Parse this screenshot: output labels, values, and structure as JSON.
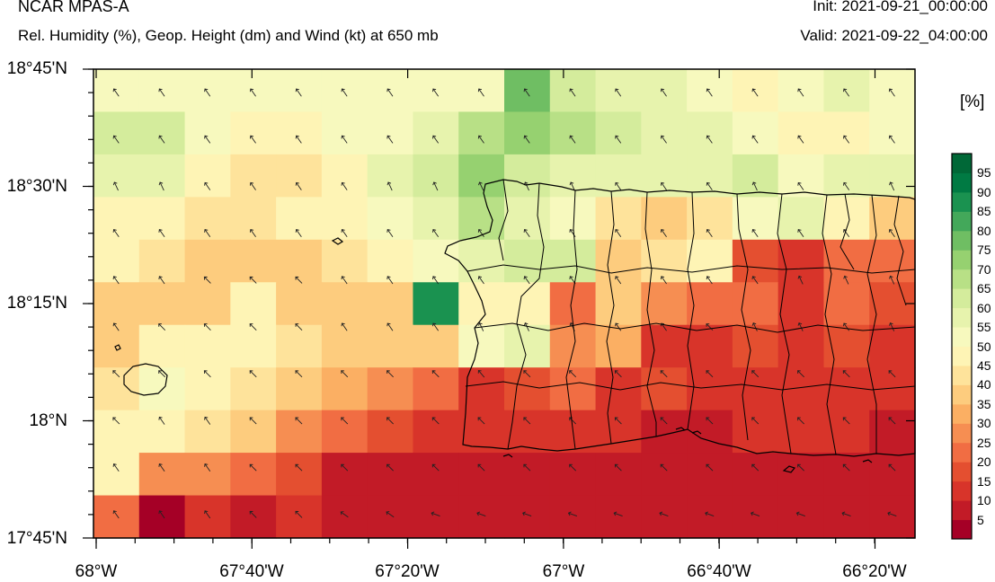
{
  "header": {
    "title": "NCAR MPAS-A",
    "subtitle": "Rel. Humidity (%), Geop. Height (dm) and Wind (kt) at 650 mb",
    "init": "Init: 2021-09-21_00:00:00",
    "valid": "Valid: 2021-09-22_04:00:00"
  },
  "axes": {
    "y_labels": [
      "18°45'N",
      "18°30'N",
      "18°15'N",
      "18°N",
      "17°45'N"
    ],
    "x_labels": [
      "68°W",
      "67°40'W",
      "67°20'W",
      "67°W",
      "66°40'W",
      "66°20'W"
    ]
  },
  "colorbar": {
    "unit": "[%]",
    "labels": [
      "95",
      "90",
      "85",
      "80",
      "75",
      "70",
      "65",
      "60",
      "55",
      "50",
      "45",
      "40",
      "35",
      "30",
      "25",
      "20",
      "15",
      "10",
      "5"
    ],
    "colors": [
      "#a50026",
      "#c21b27",
      "#d8342a",
      "#e44f30",
      "#f16d43",
      "#f68e52",
      "#fbaf63",
      "#fdcc7e",
      "#fee39b",
      "#fef4b5",
      "#f7f9be",
      "#e7f3ad",
      "#d4ec9c",
      "#b8e086",
      "#96d170",
      "#6fbe63",
      "#43a85a",
      "#1a9250",
      "#007a43",
      "#006837"
    ]
  },
  "map": {
    "lon_range": [
      -68.0,
      -66.25
    ],
    "lat_range": [
      17.75,
      18.75
    ],
    "grid_rows_north_to_south": [
      "EEEEEEEEEEEEEEEEEE",
      "EEEEEEEEEEEEEEEEEE",
      "DDEEEEDDDDDEEEDEED",
      "EEEEEEEEEEEEEEEEEE",
      "EEFFFEEEECEEEEEDDD",
      "EFFFFEEEDDDEEFDDED",
      "FFFFFFFFKFFFFFFFFF",
      "FEEFFFFFFFFFFFFFFF",
      "EEEFFFFFFFFFFFFFFF",
      "EEEFFGGHHHHHHHHHHH"
    ],
    "rh_grid": [
      [
        50,
        50,
        50,
        50,
        50,
        50,
        50,
        50,
        50,
        75,
        62,
        58,
        55,
        52,
        48,
        52,
        58,
        50
      ],
      [
        60,
        60,
        52,
        48,
        48,
        52,
        52,
        58,
        65,
        70,
        65,
        62,
        55,
        55,
        52,
        48,
        48,
        50
      ],
      [
        55,
        55,
        48,
        42,
        42,
        48,
        55,
        60,
        72,
        62,
        58,
        55,
        55,
        55,
        62,
        52,
        58,
        55
      ],
      [
        48,
        48,
        42,
        42,
        45,
        45,
        50,
        58,
        67,
        55,
        52,
        42,
        35,
        40,
        50,
        55,
        48,
        38
      ],
      [
        46,
        44,
        38,
        38,
        38,
        42,
        47,
        52,
        55,
        60,
        60,
        38,
        42,
        46,
        18,
        14,
        24,
        22
      ],
      [
        38,
        38,
        38,
        46,
        38,
        38,
        38,
        88,
        45,
        48,
        24,
        38,
        26,
        20,
        22,
        14,
        22,
        18
      ],
      [
        38,
        46,
        46,
        46,
        40,
        38,
        38,
        36,
        50,
        58,
        28,
        34,
        14,
        14,
        17,
        12,
        16,
        12
      ],
      [
        44,
        50,
        45,
        40,
        37,
        32,
        27,
        22,
        14,
        18,
        20,
        10,
        16,
        14,
        10,
        14,
        12,
        10
      ],
      [
        48,
        48,
        42,
        38,
        29,
        20,
        18,
        12,
        12,
        12,
        12,
        10,
        8,
        8,
        10,
        10,
        10,
        8
      ],
      [
        48,
        28,
        29,
        24,
        18,
        6,
        6,
        6,
        6,
        6,
        6,
        6,
        6,
        6,
        6,
        6,
        6,
        6
      ],
      [
        24,
        4,
        10,
        8,
        12,
        6,
        6,
        6,
        6,
        6,
        6,
        6,
        6,
        6,
        6,
        6,
        6,
        6
      ]
    ]
  }
}
